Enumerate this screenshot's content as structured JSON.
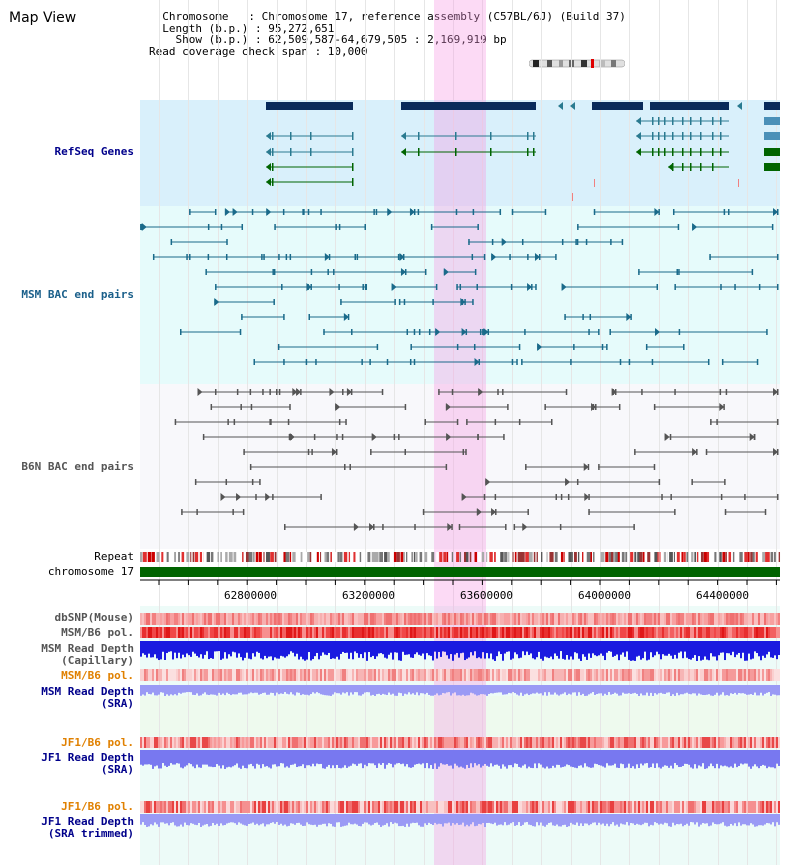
{
  "view": {
    "title": "Map View",
    "info_lines": [
      "  Chromosome   : Chromosome 17, reference assembly (C57BL/6J) (Build 37)",
      "  Length (b.p.) : 95,272,651",
      "    Show (b.p.) : 62,509,587-64,679,505 : 2,169,919 bp",
      "Read coverage check span : 10,000"
    ]
  },
  "tracks": {
    "refseq": "RefSeq Genes",
    "msm_bac": "MSM BAC end pairs",
    "b6n_bac": "B6N BAC end pairs",
    "repeat": "Repeat",
    "chromosome": "chromosome 17",
    "dbsnp": "dbSNP(Mouse)",
    "msm_b6_pol_1": "MSM/B6 pol.",
    "msm_read_depth_cap": "MSM Read Depth\n(Capillary)",
    "msm_b6_pol_2": "MSM/B6 pol.",
    "msm_read_depth_sra": "MSM Read Depth\n(SRA)",
    "jf1_b6_pol_1": "JF1/B6 pol.",
    "jf1_read_depth_sra": "JF1 Read Depth\n(SRA)",
    "jf1_b6_pol_2": "JF1/B6 pol.",
    "jf1_read_depth_trim": "JF1 Read Depth\n(SRA trimmed)"
  },
  "axis": {
    "ticks": [
      "62800000",
      "63200000",
      "63600000",
      "64000000",
      "64400000"
    ]
  },
  "colors": {
    "refseq_bg": "#d9f0fb",
    "msm_bg": "#e6fbfb",
    "b6n_bg": "#f8f8fb",
    "highlight": "#f7c8ee",
    "gene_dark": "#0a2a5a",
    "gene_teal": "#2a7a90",
    "gene_green": "#006400",
    "msm_feature": "#1a6a8a",
    "b6n_feature": "#555555",
    "chromosome_bar": "#006400",
    "label_blue": "#00008b",
    "label_teal": "#1a5f8a",
    "label_grey": "#555555",
    "label_orange": "#e08000"
  }
}
